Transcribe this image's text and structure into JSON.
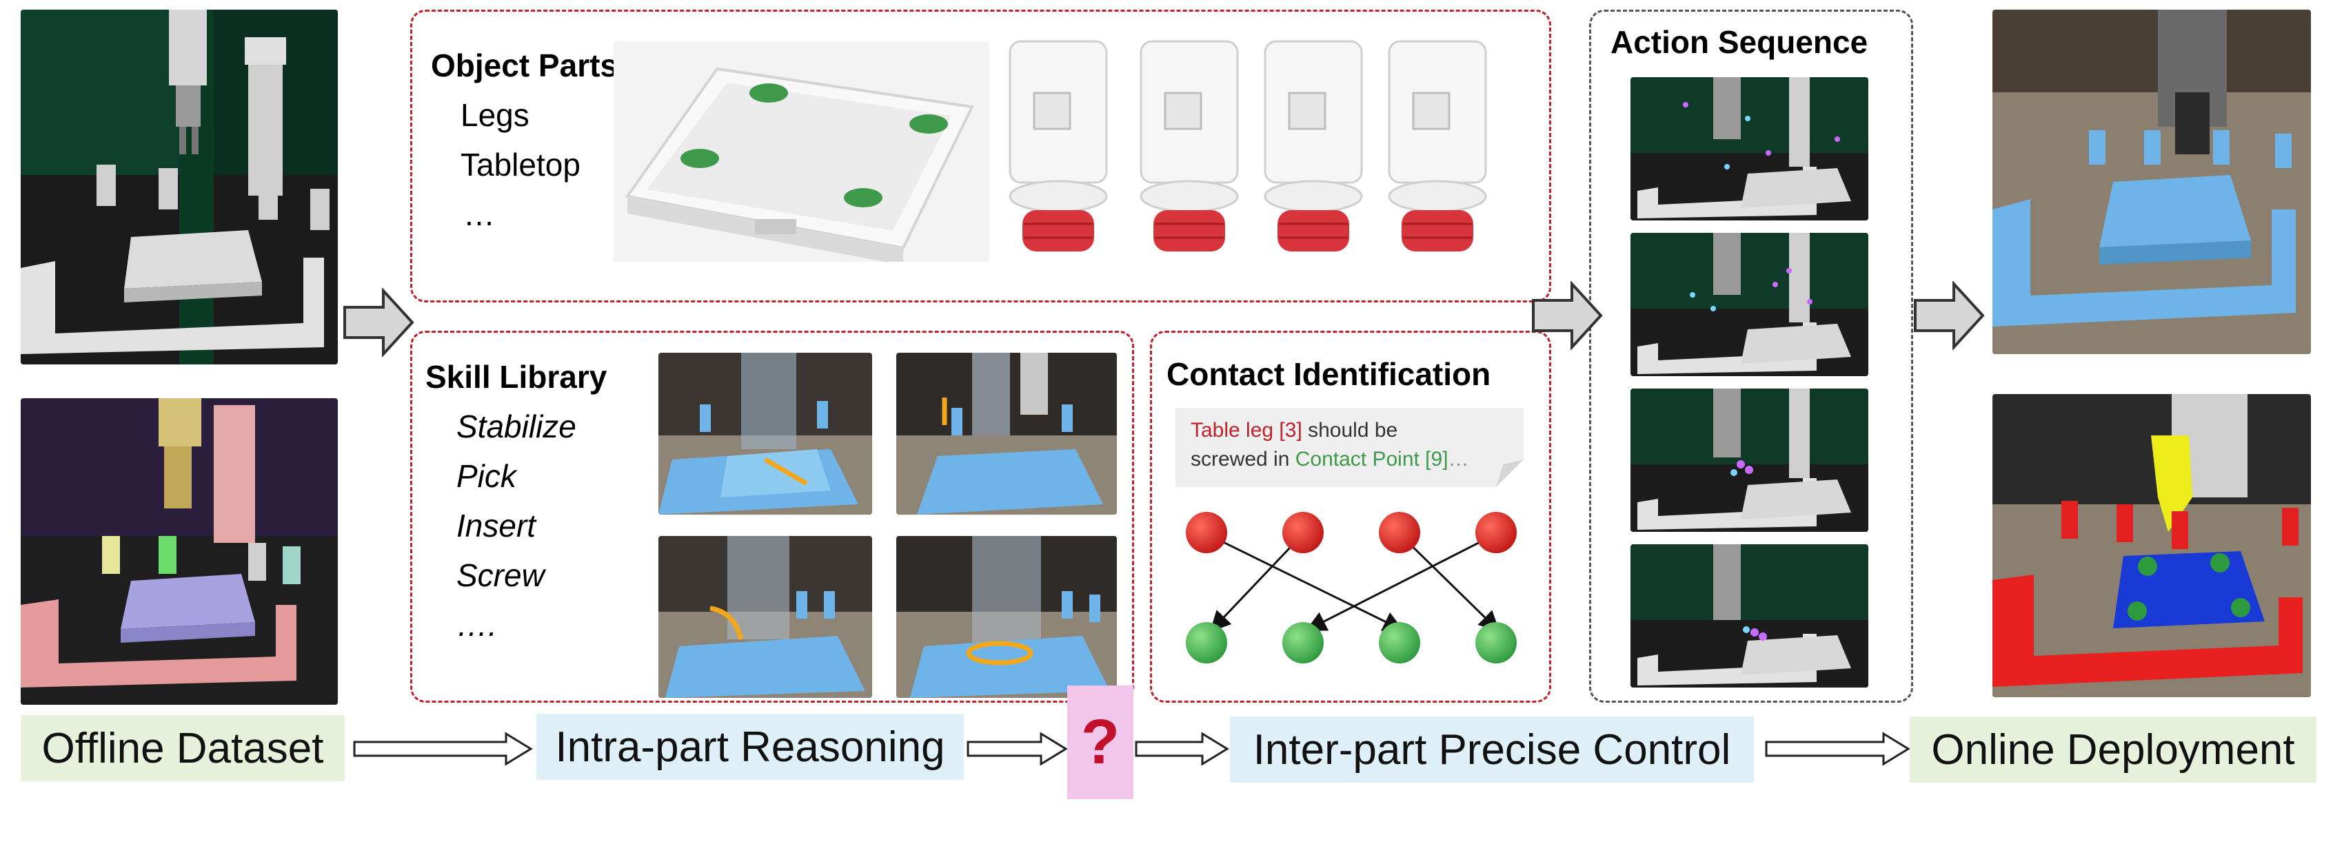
{
  "object_parts": {
    "title": "Object Parts",
    "items": [
      "Legs",
      "Tabletop",
      "…"
    ]
  },
  "skill_library": {
    "title": "Skill Library",
    "items": [
      "Stabilize",
      "Pick",
      "Insert",
      "Screw",
      "…."
    ]
  },
  "contact": {
    "title": "Contact Identification",
    "note_part1": "Table leg [3]",
    "note_part2": " should be",
    "note_line2a": "screwed in ",
    "note_part3": "Contact Point [9]",
    "note_part4": "…"
  },
  "action_sequence": {
    "title": "Action Sequence"
  },
  "pipeline": {
    "offline": "Offline Dataset",
    "intra": "Intra-part Reasoning",
    "question": "?",
    "inter": "Inter-part Precise Control",
    "online": "Online Deployment"
  },
  "colors": {
    "dashed_red": "#c0222c",
    "label_green": "#e6f2dc",
    "label_blue": "#dff0f8",
    "question_bg": "#f2c6ea",
    "question_mark": "#c0102a",
    "node_red": "#d42020",
    "node_green": "#3ea84a",
    "blue_part": "#6fb4e8"
  }
}
